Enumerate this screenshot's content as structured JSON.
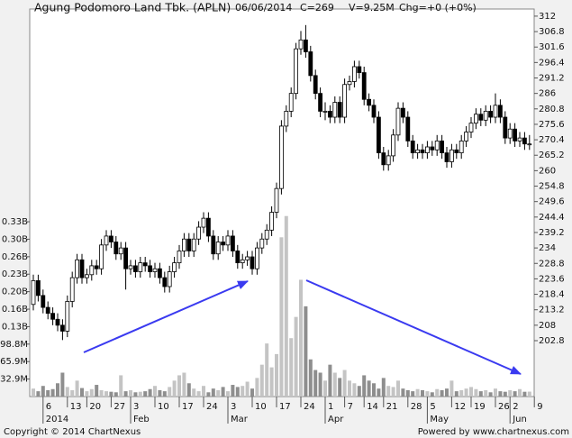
{
  "chart_data": {
    "type": "candlestick",
    "title": "Agung Podomoro Land Tbk. (APLN)",
    "date": "06/06/2014",
    "close_label": "C=269",
    "volume_label": "V=9.25M",
    "change_label": "Chg=+0 (+0%)",
    "copyright": "Copyright © 2014 ChartNexus",
    "powered_by": "Powered by www.chartnexus.com",
    "categories": [
      null,
      null,
      "6",
      null,
      null,
      null,
      null,
      "13",
      null,
      null,
      null,
      "20",
      null,
      null,
      null,
      null,
      "27",
      null,
      null,
      null,
      "3",
      null,
      null,
      null,
      null,
      "10",
      null,
      null,
      null,
      null,
      "17",
      null,
      null,
      null,
      null,
      "24",
      null,
      null,
      null,
      null,
      "3",
      null,
      null,
      null,
      null,
      "10",
      null,
      null,
      null,
      null,
      "17",
      null,
      null,
      null,
      null,
      "24",
      null,
      null,
      null,
      null,
      "1",
      null,
      null,
      null,
      "7",
      null,
      null,
      null,
      "14",
      null,
      null,
      null,
      "21",
      null,
      null,
      null,
      null,
      "28",
      null,
      null,
      null,
      "5",
      null,
      null,
      null,
      null,
      "12",
      null,
      null,
      null,
      "19",
      null,
      null,
      null,
      null,
      "26",
      null,
      null,
      "2",
      null,
      null,
      null,
      null,
      "9"
    ],
    "month_labels": [
      null,
      null,
      "2014",
      null,
      null,
      null,
      null,
      null,
      null,
      null,
      null,
      null,
      null,
      null,
      null,
      null,
      null,
      null,
      null,
      null,
      "Feb",
      null,
      null,
      null,
      null,
      null,
      null,
      null,
      null,
      null,
      null,
      null,
      null,
      null,
      null,
      null,
      null,
      null,
      null,
      null,
      "Mar",
      null,
      null,
      null,
      null,
      null,
      null,
      null,
      null,
      null,
      null,
      null,
      null,
      null,
      null,
      null,
      null,
      null,
      null,
      null,
      "Apr",
      null,
      null,
      null,
      null,
      null,
      null,
      null,
      null,
      null,
      null,
      null,
      null,
      null,
      null,
      null,
      null,
      null,
      null,
      null,
      null,
      "May",
      null,
      null,
      null,
      null,
      null,
      null,
      null,
      null,
      null,
      null,
      null,
      null,
      null,
      null,
      null,
      null,
      "Jun",
      null,
      null,
      null,
      null,
      null
    ],
    "open": [
      215,
      223,
      218,
      214,
      212,
      210,
      208,
      206,
      216,
      224,
      230,
      224,
      225,
      228,
      227,
      235,
      238,
      236,
      232,
      234,
      227,
      228,
      226,
      229,
      228,
      226,
      227,
      224,
      221,
      226,
      229,
      233,
      237,
      233,
      237,
      241,
      244,
      238,
      232,
      236,
      235,
      238,
      233,
      229,
      230,
      231,
      227,
      234,
      237,
      240,
      246,
      254,
      275,
      280,
      286,
      301,
      304,
      300,
      292,
      286,
      280,
      280,
      278,
      283,
      278,
      289,
      290,
      295,
      293,
      284,
      282,
      278,
      266,
      262,
      265,
      272,
      281,
      278,
      270,
      266,
      267,
      266,
      268,
      267,
      270,
      266,
      263,
      267,
      266,
      270,
      273,
      276,
      279,
      277,
      280,
      278,
      282,
      278,
      271,
      274,
      270,
      271,
      269,
      null
    ],
    "high": [
      225,
      225,
      220,
      216,
      214,
      212,
      210,
      218,
      226,
      232,
      232,
      227,
      230,
      230,
      237,
      240,
      240,
      238,
      236,
      236,
      230,
      230,
      231,
      231,
      230,
      229,
      229,
      226,
      228,
      231,
      235,
      239,
      239,
      239,
      243,
      246,
      246,
      240,
      238,
      238,
      240,
      240,
      235,
      232,
      233,
      233,
      236,
      239,
      242,
      248,
      256,
      277,
      282,
      288,
      303,
      307,
      309,
      302,
      294,
      288,
      283,
      282,
      285,
      285,
      291,
      292,
      297,
      297,
      295,
      286,
      284,
      280,
      268,
      267,
      274,
      283,
      283,
      280,
      272,
      269,
      269,
      270,
      270,
      272,
      272,
      268,
      269,
      269,
      272,
      275,
      278,
      281,
      281,
      282,
      282,
      286,
      284,
      280,
      276,
      276,
      273,
      273,
      272,
      null
    ],
    "low": [
      213,
      216,
      212,
      210,
      208,
      206,
      203,
      204,
      214,
      222,
      222,
      222,
      223,
      225,
      225,
      233,
      234,
      230,
      230,
      220,
      225,
      224,
      224,
      226,
      224,
      224,
      222,
      219,
      219,
      224,
      227,
      231,
      231,
      231,
      235,
      239,
      236,
      230,
      230,
      233,
      233,
      231,
      227,
      227,
      228,
      225,
      225,
      232,
      235,
      238,
      244,
      252,
      273,
      278,
      284,
      299,
      298,
      290,
      284,
      278,
      277,
      276,
      276,
      276,
      276,
      287,
      288,
      291,
      282,
      280,
      276,
      264,
      260,
      260,
      263,
      270,
      276,
      268,
      264,
      264,
      264,
      264,
      265,
      265,
      264,
      261,
      261,
      264,
      264,
      268,
      271,
      274,
      275,
      275,
      276,
      276,
      276,
      269,
      269,
      268,
      268,
      267,
      267,
      null
    ],
    "close": [
      223,
      218,
      214,
      212,
      210,
      208,
      206,
      216,
      224,
      230,
      224,
      225,
      228,
      227,
      235,
      238,
      236,
      232,
      234,
      227,
      228,
      226,
      229,
      228,
      226,
      227,
      224,
      221,
      226,
      229,
      233,
      237,
      233,
      237,
      241,
      244,
      238,
      232,
      236,
      235,
      238,
      233,
      229,
      230,
      231,
      227,
      234,
      237,
      240,
      246,
      254,
      275,
      280,
      286,
      301,
      304,
      300,
      292,
      286,
      280,
      280,
      278,
      283,
      278,
      289,
      290,
      295,
      293,
      284,
      282,
      278,
      266,
      262,
      265,
      272,
      281,
      278,
      270,
      266,
      267,
      266,
      268,
      267,
      270,
      266,
      263,
      267,
      266,
      270,
      273,
      276,
      279,
      277,
      280,
      278,
      282,
      278,
      271,
      274,
      270,
      271,
      269,
      269,
      null
    ],
    "volume": [
      15,
      10,
      20,
      12,
      14,
      25,
      45,
      18,
      12,
      30,
      16,
      10,
      14,
      22,
      12,
      10,
      9,
      8,
      40,
      10,
      12,
      8,
      9,
      10,
      14,
      20,
      12,
      10,
      18,
      30,
      40,
      45,
      25,
      15,
      10,
      20,
      8,
      15,
      12,
      18,
      10,
      22,
      18,
      20,
      28,
      15,
      35,
      60,
      100,
      55,
      80,
      300,
      340,
      110,
      150,
      220,
      170,
      70,
      50,
      45,
      30,
      60,
      45,
      35,
      50,
      30,
      25,
      20,
      40,
      30,
      25,
      15,
      35,
      20,
      18,
      30,
      15,
      12,
      10,
      14,
      12,
      10,
      8,
      14,
      12,
      15,
      30,
      10,
      12,
      15,
      18,
      14,
      10,
      12,
      8,
      15,
      10,
      9,
      12,
      10,
      14,
      9,
      9.25,
      null
    ],
    "ylim": [
      184,
      314.4
    ],
    "yticks": [
      202.8,
      208,
      213.2,
      218.4,
      223.6,
      228.8,
      234,
      239.2,
      244.4,
      249.6,
      254.8,
      260,
      265.2,
      270.4,
      275.6,
      280.8,
      286,
      291.2,
      296.4,
      301.6,
      306.8,
      312
    ],
    "y2lim": [
      0,
      730
    ],
    "y2ticks": [
      {
        "value": 32.93,
        "label": "32.9M"
      },
      {
        "value": 65.86,
        "label": "65.9M"
      },
      {
        "value": 98.79,
        "label": "98.8M"
      },
      {
        "value": 131.7,
        "label": "0.13B"
      },
      {
        "value": 164.6,
        "label": "0.16B"
      },
      {
        "value": 197.6,
        "label": "0.20B"
      },
      {
        "value": 230.5,
        "label": "0.23B"
      },
      {
        "value": 263.4,
        "label": "0.26B"
      },
      {
        "value": 296.4,
        "label": "0.30B"
      },
      {
        "value": 329.3,
        "label": "0.33B"
      }
    ],
    "up_color": "#ffffff",
    "down_color": "#000000",
    "volume_up_color": "#c4c4c4",
    "volume_down_color": "#8e8e8e"
  }
}
